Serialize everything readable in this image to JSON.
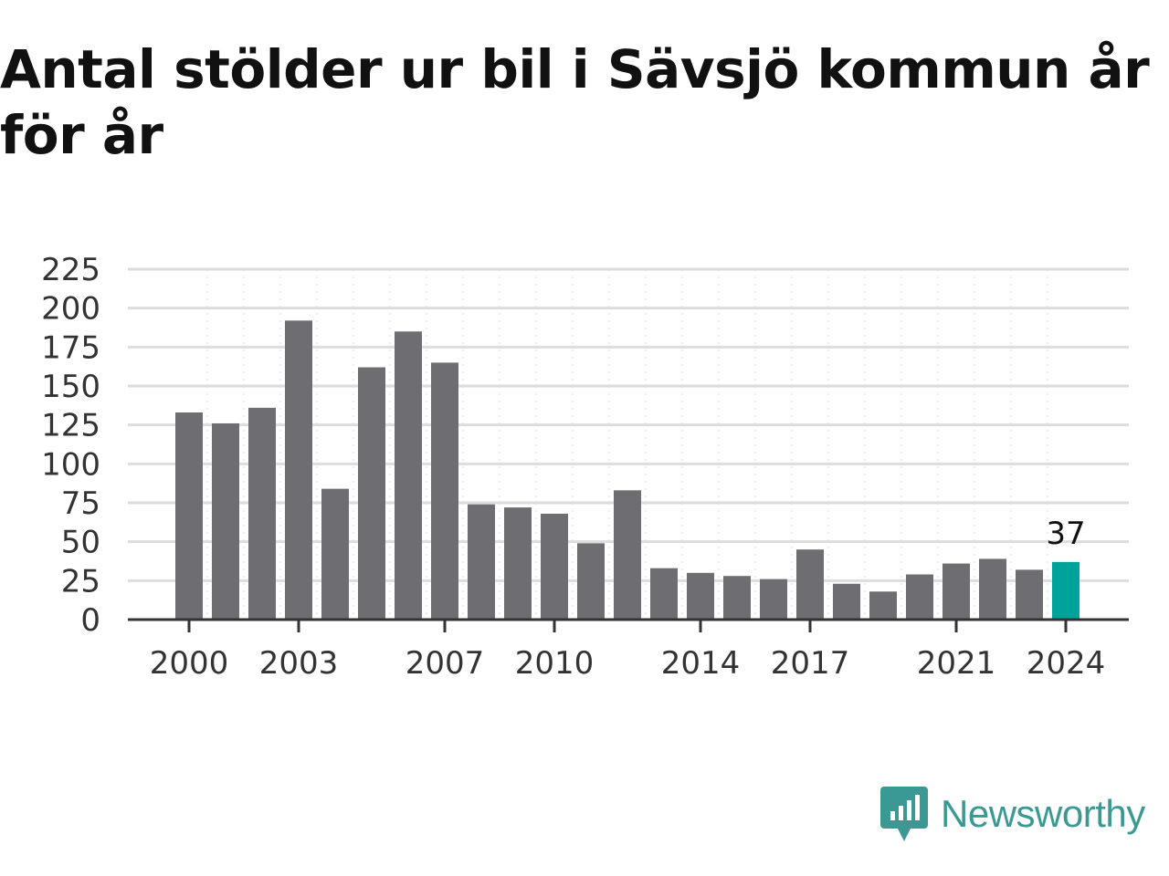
{
  "title": "Antal stölder ur bil i Sävsjö kommun år för år",
  "brand": {
    "name": "Newsworthy",
    "color": "#3a9a93",
    "icon": "newsworthy-logo-icon"
  },
  "colors": {
    "bar": "#6e6d72",
    "highlight": "#00a39a",
    "grid": "#dddddd",
    "axis": "#333333"
  },
  "chart_data": {
    "type": "bar",
    "title": "Antal stölder ur bil i Sävsjö kommun år för år",
    "xlabel": "",
    "ylabel": "",
    "categories": [
      2000,
      2001,
      2002,
      2003,
      2004,
      2005,
      2006,
      2007,
      2008,
      2009,
      2010,
      2011,
      2012,
      2013,
      2014,
      2015,
      2016,
      2017,
      2018,
      2019,
      2020,
      2021,
      2022,
      2023,
      2024
    ],
    "values": [
      133,
      126,
      136,
      192,
      84,
      162,
      185,
      165,
      74,
      72,
      68,
      49,
      83,
      33,
      30,
      28,
      26,
      45,
      23,
      18,
      29,
      36,
      39,
      32,
      37
    ],
    "ylim": [
      0,
      225
    ],
    "yticks": [
      0,
      25,
      50,
      75,
      100,
      125,
      150,
      175,
      200,
      225
    ],
    "xticks": [
      2000,
      2003,
      2007,
      2010,
      2014,
      2017,
      2021,
      2024
    ],
    "highlight_category": 2024,
    "data_labels": [
      {
        "category": 2024,
        "text": "37"
      }
    ],
    "grid": true,
    "legend": "none"
  }
}
